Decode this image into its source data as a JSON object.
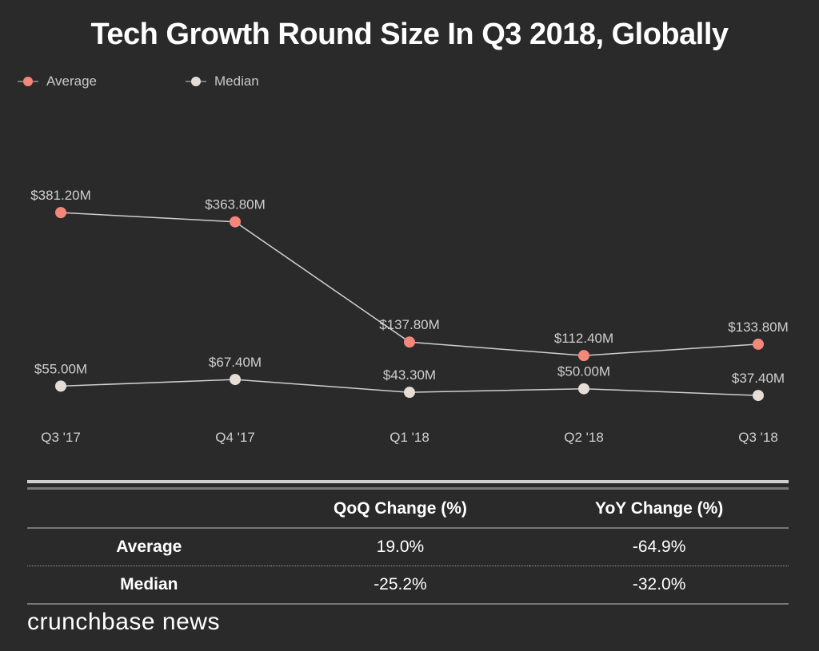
{
  "title": "Tech Growth Round Size In Q3 2018, Globally",
  "chart_data": {
    "type": "line",
    "title": "Tech Growth Round Size In Q3 2018, Globally",
    "categories": [
      "Q3 '17",
      "Q4 '17",
      "Q1 '18",
      "Q2 '18",
      "Q3 '18"
    ],
    "series": [
      {
        "name": "Average",
        "values": [
          381.2,
          363.8,
          137.8,
          112.4,
          133.8
        ],
        "labels": [
          "$381.20M",
          "$363.80M",
          "$137.80M",
          "$112.40M",
          "$133.80M"
        ],
        "color": "#f4877a"
      },
      {
        "name": "Median",
        "values": [
          55.0,
          67.4,
          43.3,
          50.0,
          37.4
        ],
        "labels": [
          "$55.00M",
          "$67.40M",
          "$43.30M",
          "$50.00M",
          "$37.40M"
        ],
        "color": "#e6ddd6"
      }
    ],
    "unit": "$M",
    "legend": "top-left",
    "grid": false
  },
  "table": {
    "headers": [
      "",
      "QoQ Change (%)",
      "YoY Change (%)"
    ],
    "rows": [
      [
        "Average",
        "19.0%",
        "-64.9%"
      ],
      [
        "Median",
        "-25.2%",
        "-32.0%"
      ]
    ]
  },
  "brand": "crunchbase news"
}
